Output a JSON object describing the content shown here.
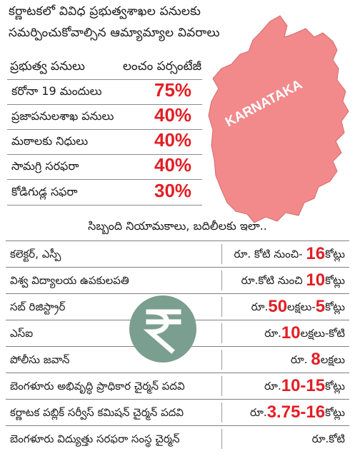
{
  "heading": {
    "line1": "కర్ణాటకలో వివిధ ప్రభుత్వశాఖల పనులకు",
    "line2": "సమర్పించుకోవాల్సిన ఆమ్యామ్యాల వివరాలు"
  },
  "map_label": "KARNATAKA",
  "rates_table": {
    "header_work": "ప్రభుత్వ పనులు",
    "header_pct": "లంచం పర్సంటేజీ",
    "rows": [
      {
        "work": "కరోనా 19 మందులు",
        "pct": "75%"
      },
      {
        "work": "ప్రజాపనులశాఖ పనులు",
        "pct": "40%"
      },
      {
        "work": "మఠాలకు నిధులు",
        "pct": "40%"
      },
      {
        "work": "సామగ్రి సరఫరా",
        "pct": "40%"
      },
      {
        "work": "కోడిగుడ్ల సఫరా",
        "pct": "30%"
      }
    ]
  },
  "staff_heading": "సిబ్బంది నియామకాలు, బదిలీలకు ఇలా..",
  "bribe_table": [
    {
      "post": "కలెక్టర్, ఎస్పీ",
      "pre": "రూ. కోటి నుంచి- ",
      "num": "16",
      "post_unit": "కోట్లు"
    },
    {
      "post": "విశ్వ విద్యాలయ ఉపకులపతి",
      "pre": "రూ.కోటి నుంచి ",
      "num": "10",
      "post_unit": "కోట్లు"
    },
    {
      "post": "సబ్ రిజిస్ట్రార్",
      "pre": "రూ.",
      "num": "50",
      "post_unit": "లక్షలు-",
      "num2": "5",
      "post_unit2": "కోట్లు"
    },
    {
      "post": "ఎస్ఐ",
      "pre": "రూ.",
      "num": "10",
      "post_unit": "లక్షలు-కోటి"
    },
    {
      "post": "పోలీసు జవాన్",
      "pre": "రూ. ",
      "num": "8",
      "post_unit": "లక్షలు"
    },
    {
      "post": "బెంగళూరు అభివృద్ధి ప్రాధికార చైర్మన్ పదవి",
      "pre": "రూ.",
      "num": "10-15",
      "post_unit": "కోట్లు"
    },
    {
      "post": "కర్ణాటక పబ్లిక్ సర్వీస్ కమిషన్ చైర్మన్ పదవి",
      "pre": "రూ.",
      "num": "3.75-16",
      "post_unit": "కోట్లు"
    },
    {
      "post": "బెంగళూరు విద్యుత్తు సరఫరా సంస్థ చైర్మన్",
      "pre": "రూ.కోటి",
      "num": "",
      "post_unit": ""
    }
  ],
  "colors": {
    "accent_red": "#e31e24",
    "map_fill": "#f28a8c",
    "rupee_circle": "#7a9e8f"
  },
  "icons": {
    "rupee": "rupee-icon",
    "map": "karnataka-map"
  }
}
